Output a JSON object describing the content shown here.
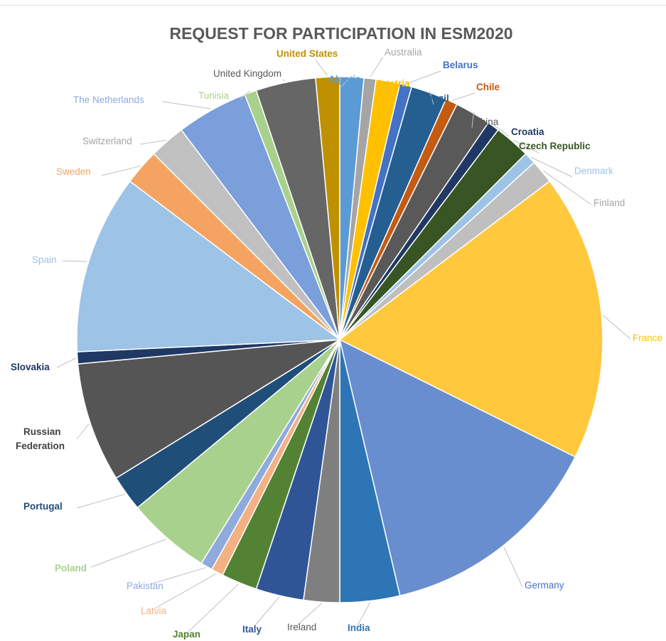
{
  "chart_data": {
    "type": "pie",
    "title": "REQUEST FOR PARTICIPATION IN ESM2020",
    "series": [
      {
        "label": "Algeria",
        "value": 2,
        "color": "#5b9bd5",
        "text_color": "#5b9bd5",
        "bold": true
      },
      {
        "label": "Australia",
        "value": 1,
        "color": "#a5a5a5",
        "text_color": "#a5a5a5",
        "bold": false
      },
      {
        "label": "Austria",
        "value": 2,
        "color": "#ffc000",
        "text_color": "#ffc000",
        "bold": true
      },
      {
        "label": "Belarus",
        "value": 1,
        "color": "#4472c4",
        "text_color": "#4472c4",
        "bold": true
      },
      {
        "label": "Brazil",
        "value": 3,
        "color": "#255e91",
        "text_color": "#255e91",
        "bold": true
      },
      {
        "label": "Chile",
        "value": 1,
        "color": "#c55a11",
        "text_color": "#c55a11",
        "bold": true
      },
      {
        "label": "China",
        "value": 3,
        "color": "#595959",
        "text_color": "#595959",
        "bold": false
      },
      {
        "label": "Croatia",
        "value": 1,
        "color": "#203864",
        "text_color": "#203864",
        "bold": true
      },
      {
        "label": "Czech Republic",
        "value": 3,
        "color": "#375623",
        "text_color": "#375623",
        "bold": true
      },
      {
        "label": "Denmark",
        "value": 1,
        "color": "#9dc3e6",
        "text_color": "#9dc3e6",
        "bold": false
      },
      {
        "label": "Finland",
        "value": 2,
        "color": "#bfbfbf",
        "text_color": "#a5a5a5",
        "bold": false
      },
      {
        "label": "France",
        "value": 24,
        "color": "#ffc83d",
        "text_color": "#ffc000",
        "bold": false
      },
      {
        "label": "Germany",
        "value": 19,
        "color": "#698ed0",
        "text_color": "#4472c4",
        "bold": false
      },
      {
        "label": "India",
        "value": 5,
        "color": "#2e75b6",
        "text_color": "#2e75b6",
        "bold": true
      },
      {
        "label": "Ireland",
        "value": 3,
        "color": "#7f7f7f",
        "text_color": "#595959",
        "bold": false
      },
      {
        "label": "Italy",
        "value": 4,
        "color": "#2f5597",
        "text_color": "#2f5597",
        "bold": true
      },
      {
        "label": "Japan",
        "value": 3,
        "color": "#548235",
        "text_color": "#548235",
        "bold": true
      },
      {
        "label": "Latvia",
        "value": 1,
        "color": "#f4b183",
        "text_color": "#f4b183",
        "bold": false
      },
      {
        "label": "Pakistan",
        "value": 1,
        "color": "#8faadc",
        "text_color": "#8faadc",
        "bold": false
      },
      {
        "label": "Poland",
        "value": 7,
        "color": "#a9d18e",
        "text_color": "#a9d18e",
        "bold": true
      },
      {
        "label": "Portugal",
        "value": 3,
        "color": "#1f4e79",
        "text_color": "#1f4e79",
        "bold": true
      },
      {
        "label": "Russian Federation",
        "value": 10,
        "color": "#555555",
        "text_color": "#404040",
        "bold": true
      },
      {
        "label": "Slovakia",
        "value": 1,
        "color": "#1f3864",
        "text_color": "#1f3864",
        "bold": true
      },
      {
        "label": "Spain",
        "value": 15,
        "color": "#9dc3e6",
        "text_color": "#9dc3e6",
        "bold": false
      },
      {
        "label": "Sweden",
        "value": 3,
        "color": "#f4a460",
        "text_color": "#f4a460",
        "bold": false
      },
      {
        "label": "Switzerland",
        "value": 3,
        "color": "#c0c0c0",
        "text_color": "#a5a5a5",
        "bold": false
      },
      {
        "label": "The Netherlands",
        "value": 6,
        "color": "#7a9fda",
        "text_color": "#8faadc",
        "bold": false
      },
      {
        "label": "Tunisia",
        "value": 1,
        "color": "#a9d18e",
        "text_color": "#a9d18e",
        "bold": false
      },
      {
        "label": "United Kingdom",
        "value": 5,
        "color": "#666666",
        "text_color": "#595959",
        "bold": false
      },
      {
        "label": "United States",
        "value": 2,
        "color": "#bf9000",
        "text_color": "#bf9000",
        "bold": true
      }
    ]
  }
}
